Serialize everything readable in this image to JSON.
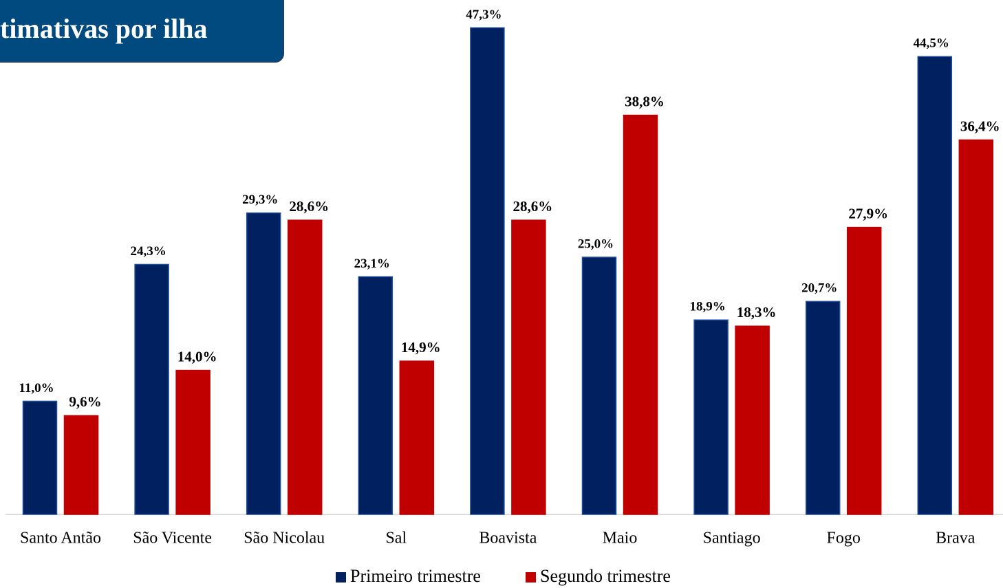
{
  "chart_data": {
    "type": "bar",
    "title": "timativas por ilha",
    "categories": [
      "Santo Antão",
      "São Vicente",
      "São Nicolau",
      "Sal",
      "Boavista",
      "Maio",
      "Santiago",
      "Fogo",
      "Brava"
    ],
    "series": [
      {
        "name": "Primeiro trimestre",
        "color": "#002060",
        "values": [
          11.0,
          24.3,
          29.3,
          23.1,
          47.3,
          25.0,
          18.9,
          20.7,
          44.5
        ],
        "value_labels": [
          "11,0%",
          "24,3%",
          "29,3%",
          "23,1%",
          "47,3%",
          "25,0%",
          "18,9%",
          "20,7%",
          "44,5%"
        ]
      },
      {
        "name": "Segundo trimestre",
        "color": "#c00000",
        "values": [
          9.6,
          14.0,
          28.6,
          14.9,
          28.6,
          38.8,
          18.3,
          27.9,
          36.4
        ],
        "value_labels": [
          "9,6%",
          "14,0%",
          "28,6%",
          "14,9%",
          "28,6%",
          "38,8%",
          "18,3%",
          "27,9%",
          "36,4%"
        ]
      }
    ],
    "ylim": [
      0,
      50
    ],
    "legend": "bottom"
  }
}
